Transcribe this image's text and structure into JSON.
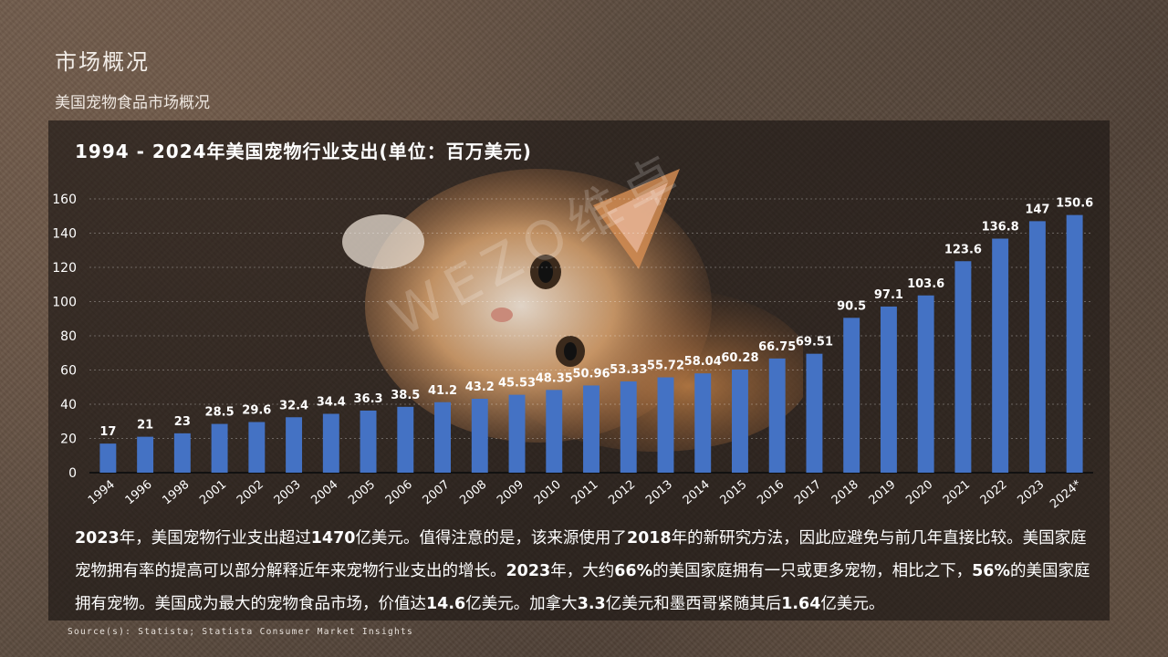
{
  "header": {
    "title": "市场概况",
    "subtitle": "美国宠物食品市场概况"
  },
  "chart_data": {
    "type": "bar",
    "title": "1994 - 2024年美国宠物行业支出(单位：百万美元)",
    "categories": [
      "1994",
      "1996",
      "1998",
      "2001",
      "2002",
      "2003",
      "2004",
      "2005",
      "2006",
      "2007",
      "2008",
      "2009",
      "2010",
      "2011",
      "2012",
      "2013",
      "2014",
      "2015",
      "2016",
      "2017",
      "2018",
      "2019",
      "2020",
      "2021",
      "2022",
      "2023",
      "2024*"
    ],
    "values": [
      17,
      21,
      23,
      28.5,
      29.6,
      32.4,
      34.4,
      36.3,
      38.5,
      41.2,
      43.2,
      45.53,
      48.35,
      50.96,
      53.33,
      55.72,
      58.04,
      60.28,
      66.75,
      69.51,
      90.5,
      97.1,
      103.6,
      123.6,
      136.8,
      147,
      150.6
    ],
    "value_labels": [
      "17",
      "21",
      "23",
      "28.5",
      "29.6",
      "32.4",
      "34.4",
      "36.3",
      "38.5",
      "41.2",
      "43.2",
      "45.53",
      "48.35",
      "50.96",
      "53.33",
      "55.72",
      "58.04",
      "60.28",
      "66.75",
      "69.51",
      "90.5",
      "97.1",
      "103.6",
      "123.6",
      "136.8",
      "147",
      "150.6"
    ],
    "yticks": [
      "0",
      "20",
      "40",
      "60",
      "80",
      "100",
      "120",
      "140",
      "160"
    ],
    "ylim": [
      0,
      160
    ],
    "grid": true,
    "legend": "none",
    "bar_color": "#4472c4"
  },
  "watermark": "WEZO维卓",
  "description": {
    "s1": "2023",
    "s2": "年，美国宠物行业支出超过",
    "s3": "1470",
    "s4": "亿美元。值得注意的是，该来源使用了",
    "s5": "2018",
    "s6": "年的新研究方法，因此应避免与前几年直接比较。美国家庭宠物拥有率的提高可以部分解释近年来宠物行业支出的增长。",
    "s7": "2023",
    "s8": "年，大约",
    "s9": "66%",
    "s10": "的美国家庭拥有一只或更多宠物，相比之下，",
    "s11": "56%",
    "s12": "的美国家庭拥有宠物。美国成为最大的宠物食品市场，价值达",
    "s13": "14.6",
    "s14": "亿美元。加拿大",
    "s15": "3.3",
    "s16": "亿美元和墨西哥紧随其后",
    "s17": "1.64",
    "s18": "亿美元。"
  },
  "source": "Source(s): Statista; Statista Consumer Market Insights"
}
